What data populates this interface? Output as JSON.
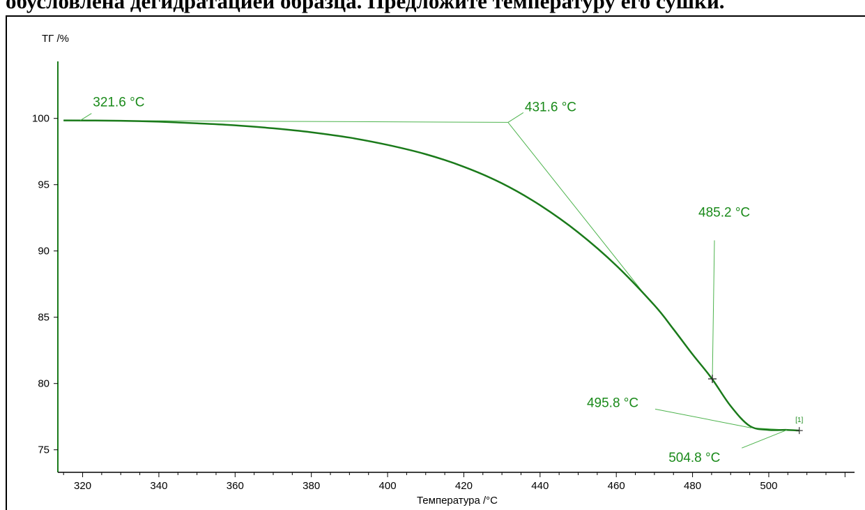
{
  "page": {
    "top_text": "обусловлена дегидратацией образца. Предложите температуру его сушки."
  },
  "chart_data": {
    "type": "line",
    "ylabel": "ТГ /%",
    "xlabel": "Температура /°C",
    "xlim": [
      313.5,
      522.5
    ],
    "ylim": [
      73.3,
      104.3
    ],
    "xticks": [
      320,
      340,
      360,
      380,
      400,
      420,
      440,
      460,
      480,
      500
    ],
    "yticks": [
      75,
      80,
      85,
      90,
      95,
      100
    ],
    "grid": false,
    "line_color": "#1a7a1a",
    "annotation_color": "#1a8a1a",
    "series": [
      {
        "curve_label": "[1]",
        "x": [
          315,
          330,
          340,
          350,
          360,
          370,
          380,
          390,
          400,
          410,
          420,
          430,
          440,
          450,
          460,
          470,
          475,
          480,
          485,
          490,
          495,
          500,
          504.8,
          508
        ],
        "y": [
          99.85,
          99.82,
          99.75,
          99.63,
          99.48,
          99.25,
          98.95,
          98.55,
          98.0,
          97.3,
          96.35,
          95.1,
          93.45,
          91.4,
          88.9,
          85.9,
          84.1,
          82.2,
          80.4,
          78.3,
          76.8,
          76.5,
          76.5,
          76.45
        ]
      }
    ],
    "annotations": [
      {
        "text": "321.6 °C",
        "x": 321.6,
        "y": 99.85
      },
      {
        "text": "431.6 °C",
        "x": 431.6,
        "y": 99.7
      },
      {
        "text": "485.2 °C",
        "x": 485.2,
        "y": 80.35
      },
      {
        "text": "495.8 °C",
        "x": 495.8,
        "y": 76.65
      },
      {
        "text": "504.8 °C",
        "x": 504.8,
        "y": 76.5
      }
    ],
    "tangent_lines": [
      {
        "x": [
          315,
          431.6
        ],
        "y": [
          99.85,
          99.7
        ]
      },
      {
        "x": [
          431.6,
          467.5
        ],
        "y": [
          99.7,
          86.7
        ]
      },
      {
        "x": [
          495.8,
          508
        ],
        "y": [
          76.65,
          76.45
        ]
      }
    ]
  }
}
